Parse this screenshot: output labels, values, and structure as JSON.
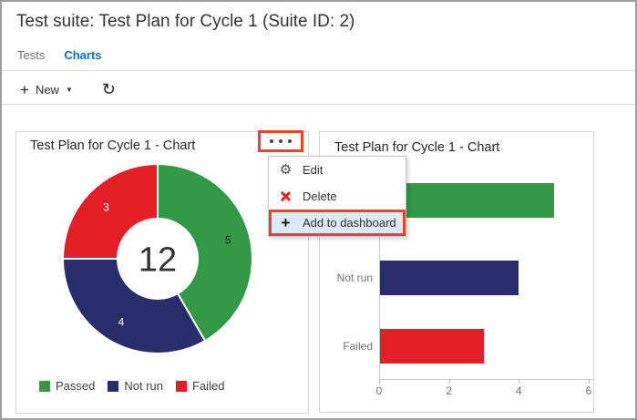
{
  "header": {
    "title": "Test suite: Test Plan for Cycle 1 (Suite ID: 2)"
  },
  "tabs": [
    {
      "label": "Tests",
      "active": false
    },
    {
      "label": "Charts",
      "active": true
    }
  ],
  "toolbar": {
    "plus_icon": "+",
    "new_label": "New",
    "dropdown_icon": "▼",
    "refresh_icon": "↻"
  },
  "cards": {
    "donut": {
      "title": "Test Plan for Cycle 1 - Chart"
    },
    "bar": {
      "title": "Test Plan for Cycle 1 - Chart"
    }
  },
  "context_menu": {
    "items": [
      {
        "label": "Edit",
        "icon": "gear-icon",
        "glyph": "⚙",
        "highlighted": false
      },
      {
        "label": "Delete",
        "icon": "delete-x-icon",
        "glyph": "",
        "highlighted": false
      },
      {
        "label": "Add to dashboard",
        "icon": "plus-icon",
        "glyph": "+",
        "highlighted": true
      }
    ]
  },
  "annotations": {
    "box_color": "#E8432E",
    "highlight_fill": "#DCE9F8"
  },
  "colors": {
    "passed": "#339947",
    "not_run": "#292E6B",
    "failed": "#E31E26",
    "active_tab": "#0072C6"
  },
  "chart_data": [
    {
      "type": "pie",
      "subtype": "donut",
      "title": "Test Plan for Cycle 1 - Chart",
      "categories": [
        "Passed",
        "Not run",
        "Failed"
      ],
      "values": [
        5,
        4,
        3
      ],
      "colors": [
        "#339947",
        "#292E6B",
        "#E31E26"
      ],
      "slice_label_colors": [
        "#1A1A1A",
        "#FFFFFF",
        "#FFFFFF"
      ],
      "center_total": "12",
      "start_angle_deg": 0,
      "direction": "clockwise",
      "legend_position": "bottom"
    },
    {
      "type": "bar",
      "orientation": "horizontal",
      "title": "Test Plan for Cycle 1 - Chart",
      "categories": [
        "Passed",
        "Not run",
        "Failed"
      ],
      "values": [
        5,
        4,
        3
      ],
      "colors": [
        "#339947",
        "#292E6B",
        "#E31E26"
      ],
      "xlim": [
        0,
        6
      ],
      "xticks": [
        0,
        2,
        4,
        6
      ],
      "grid": false,
      "legend": false
    }
  ]
}
